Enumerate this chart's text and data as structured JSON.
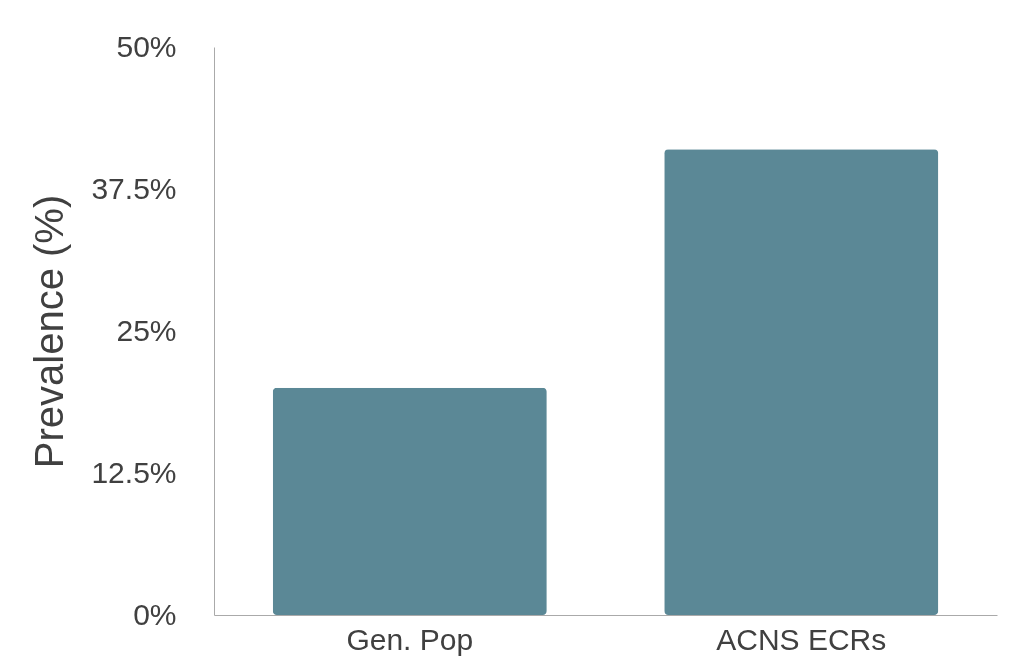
{
  "chart_data": {
    "type": "bar",
    "ylabel": "Prevalence (%)",
    "categories": [
      "Gen. Pop",
      "ACNS ECRs"
    ],
    "values": [
      20,
      41
    ],
    "color": "#5b8896",
    "ylim": [
      0,
      50
    ],
    "yticks": [
      {
        "value": 0,
        "label": "0%"
      },
      {
        "value": 12.5,
        "label": "12.5%"
      },
      {
        "value": 25,
        "label": "25%"
      },
      {
        "value": 37.5,
        "label": "37.5%"
      },
      {
        "value": 50,
        "label": "50%"
      }
    ],
    "grid": false
  }
}
